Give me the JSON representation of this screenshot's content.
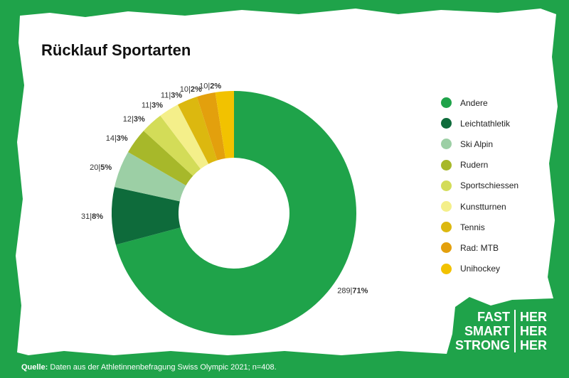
{
  "title": "Rücklauf Sportarten",
  "source_label": "Quelle:",
  "source_text": "Daten aus der Athletinnenbefragung Swiss Olympic 2021; n=408.",
  "brand": {
    "left": [
      "FAST",
      "SMART",
      "STRONG"
    ],
    "right": [
      "HER",
      "HER",
      "HER"
    ]
  },
  "colors": {
    "background": "#1fa34a",
    "paper": "#ffffff"
  },
  "chart_data": {
    "type": "pie",
    "donut": true,
    "title": "Rücklauf Sportarten",
    "legend_position": "right",
    "categories": [
      "Andere",
      "Leichtathletik",
      "Ski Alpin",
      "Rudern",
      "Sportschiessen",
      "Kunstturnen",
      "Tennis",
      "Rad: MTB",
      "Unihockey"
    ],
    "values": [
      289,
      31,
      20,
      14,
      12,
      11,
      11,
      10,
      10
    ],
    "percent_labels": [
      "71%",
      "8%",
      "5%",
      "3%",
      "3%",
      "3%",
      "3%",
      "2%",
      "2%"
    ],
    "colors": [
      "#1fa34a",
      "#0e6b3b",
      "#9ccfa5",
      "#a7b82a",
      "#d3dc58",
      "#f4ef8a",
      "#dcb80f",
      "#e3a00d",
      "#f2c200"
    ]
  }
}
